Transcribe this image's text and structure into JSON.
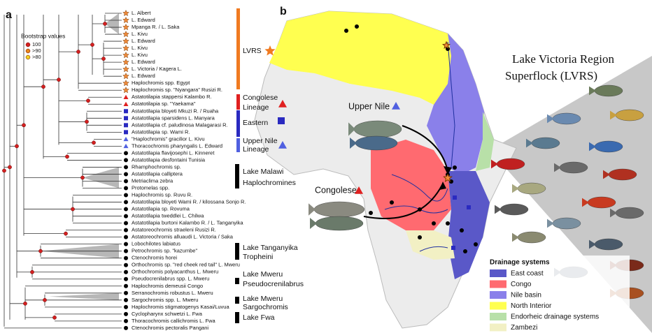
{
  "panel_a": {
    "label": "a",
    "bootstrap_legend": {
      "title": "Bootstrap values",
      "items": [
        "100",
        ">90",
        ">80"
      ]
    },
    "taxa": [
      "L. Albert",
      "L. Edward",
      "Mpanga R. / L. Saka",
      "L. Kivu",
      "L. Edward",
      "L. Kivu",
      "L. Kivu",
      "L. Edward",
      "L. Victoria / Kagera L.",
      "L. Edward",
      "Haplochromis spp. Egypt",
      "Haplochromis sp. \"Nyangara\" Rusizi R.",
      "Astatotilapia stappersi Kalambo R.",
      "Astatotilapia sp. \"Yaekama\"",
      "Astatotilapia bloyeti Mkuzi R. / Ruaha",
      "Astatotilapia sparsidens L. Manyara",
      "Astatotilapia cf. paludinosa Malagarasi R.",
      "Astatotilapia sp. Wami R.",
      "\"Haplochromis\" gracilior L. Kivu",
      "Thoracochromis pharyngalis L. Edward",
      "Astatotilapia flavijosephi L. Kinneret",
      "Astatotilapia desfontaini Tunisia",
      "Rhamphochromis sp.",
      "Astatotilapia calliptera",
      "Metriaclima zebra",
      "Protomelas spp.",
      "Haplochromis sp. Ruvu R.",
      "Astatotilapia bloyeti Wami R. / kilossana Sonjo R.",
      "Astatotilapia sp. Rovuma",
      "Astatotilapia tweddlei L. Chilwa",
      "Astatotilapia burtoni Kalambo R. / L. Tanganyika",
      "Astatoreochromis straeleni Rusizi R.",
      "Astatoreochromis alluaudi L. Victoria / Saka",
      "Lobochilotes labiatus",
      "Petrochromis sp. \"kazumbe\"",
      "Ctenochromis horei",
      "Orthochromis sp. \"red cheek red tail\" L. Mweru",
      "Orthochromis polyacanthus L. Mweru",
      "Pseudocrenilabrus spp. L. Mweru",
      "Haplochromis demeusii Congo",
      "Serranochromis robustus L. Mweru",
      "Sargochromis spp. L. Mweru",
      "Haplochromis stigmatogenys Kasai/Luvua",
      "Cyclopharynx schwetzi L. Fwa",
      "Thoracochromis callichromis L. Fwa",
      "Ctenochromis pectoralis Pangani"
    ],
    "groups": [
      {
        "lines": [
          "LVRS"
        ]
      },
      {
        "lines": [
          "Congolese",
          "Lineage"
        ]
      },
      {
        "lines": [
          "Eastern"
        ]
      },
      {
        "lines": [
          "Upper Nile",
          "Lineage"
        ]
      },
      {
        "lines": [
          "Lake Malawi",
          "Haplochromines"
        ]
      },
      {
        "lines": [
          "Lake Tanganyika",
          "Tropheini"
        ]
      },
      {
        "lines": [
          "Lake Mweru",
          "Pseudocrenilabrus"
        ]
      },
      {
        "lines": [
          "Lake Mweru",
          "Sargochromis"
        ]
      },
      {
        "lines": [
          "Lake Fwa"
        ]
      }
    ]
  },
  "panel_b": {
    "label": "b",
    "callouts": [
      "Upper Nile",
      "Congolese"
    ],
    "superflock_title": [
      "Lake Victoria Region",
      "Superflock (LVRS)"
    ],
    "legend": {
      "title": "Drainage systems",
      "items": [
        "East coast",
        "Congo",
        "Nile basin",
        "North Interior",
        "Endorheic drainage systems",
        "Zambezi"
      ]
    }
  }
}
